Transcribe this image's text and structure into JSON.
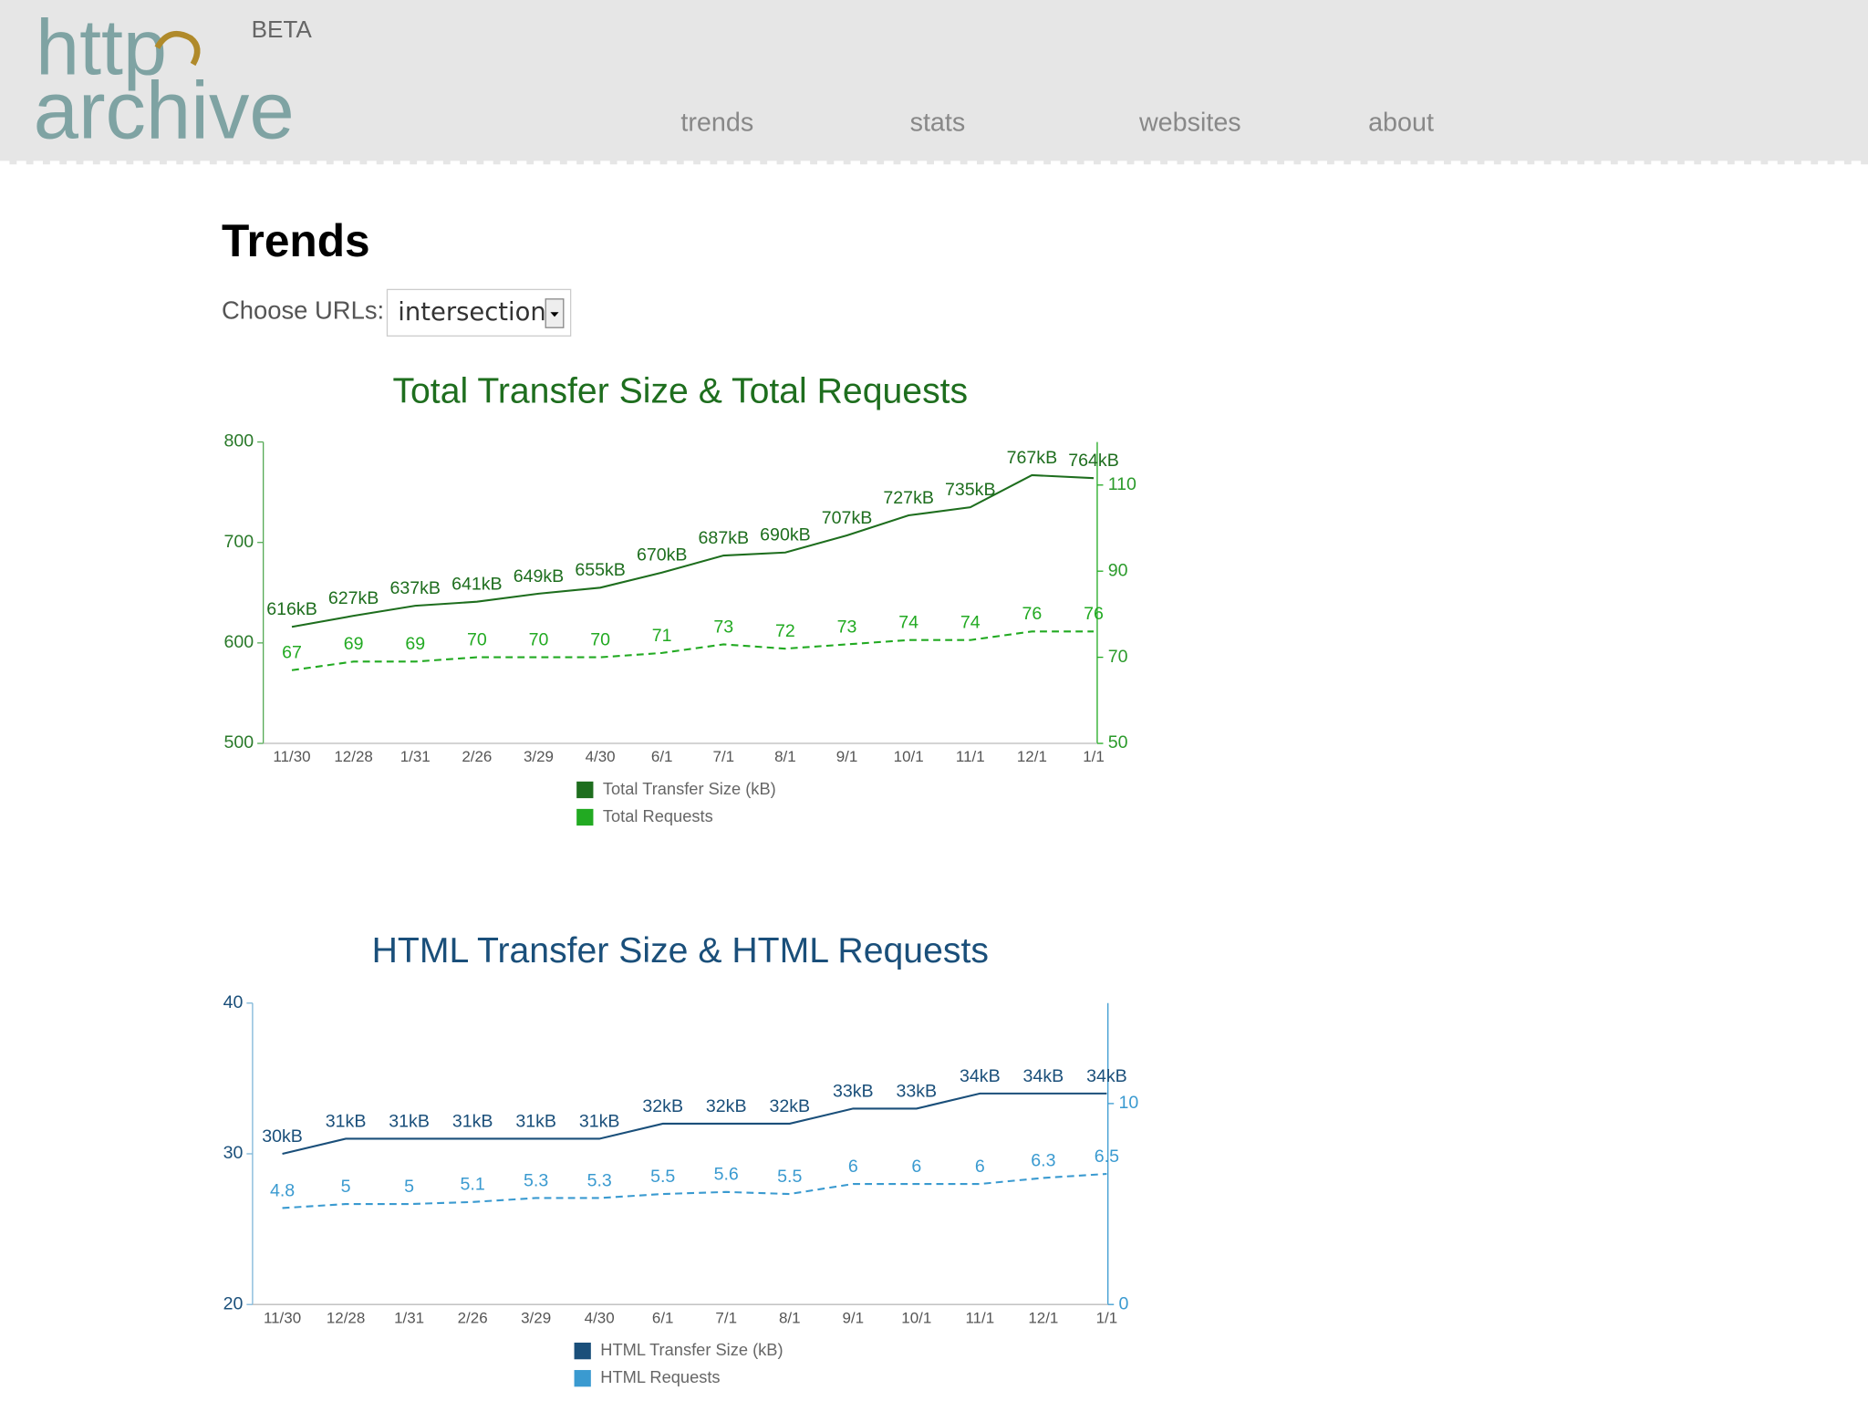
{
  "header": {
    "logo": [
      "http",
      "archive"
    ],
    "badge": "BETA",
    "nav": [
      "trends",
      "stats",
      "websites",
      "about"
    ]
  },
  "page": {
    "title": "Trends",
    "choose_label": "Choose URLs:",
    "select_value": "intersection"
  },
  "chart_data": [
    {
      "type": "line",
      "title": "Total Transfer Size & Total Requests",
      "categories": [
        "11/30",
        "12/28",
        "1/31",
        "2/26",
        "3/29",
        "4/30",
        "6/1",
        "7/1",
        "8/1",
        "9/1",
        "10/1",
        "11/1",
        "12/1",
        "1/1"
      ],
      "series": [
        {
          "name": "Total Transfer Size (kB)",
          "color": "#1e6e1e",
          "values": [
            616,
            627,
            637,
            641,
            649,
            655,
            670,
            687,
            690,
            707,
            727,
            735,
            767,
            764
          ],
          "value_labels": [
            "616kB",
            "627kB",
            "637kB",
            "641kB",
            "649kB",
            "655kB",
            "670kB",
            "687kB",
            "690kB",
            "707kB",
            "727kB",
            "735kB",
            "767kB",
            "764kB"
          ]
        },
        {
          "name": "Total Requests",
          "color": "#22aa22",
          "axis": "y2",
          "values": [
            67,
            69,
            69,
            70,
            70,
            70,
            71,
            73,
            72,
            73,
            74,
            74,
            76,
            76
          ]
        }
      ],
      "ylim": [
        500,
        800
      ],
      "yticks": [
        500,
        600,
        700,
        800
      ],
      "y2lim": [
        50,
        120
      ],
      "y2ticks": [
        50,
        70,
        90,
        110
      ]
    },
    {
      "type": "line",
      "title": "HTML Transfer Size & HTML Requests",
      "categories": [
        "11/30",
        "12/28",
        "1/31",
        "2/26",
        "3/29",
        "4/30",
        "6/1",
        "7/1",
        "8/1",
        "9/1",
        "10/1",
        "11/1",
        "12/1",
        "1/1"
      ],
      "series": [
        {
          "name": "HTML Transfer Size (kB)",
          "color": "#1a4f7a",
          "values": [
            30,
            31,
            31,
            31,
            31,
            31,
            32,
            32,
            32,
            33,
            33,
            34,
            34,
            34
          ],
          "value_labels": [
            "30kB",
            "31kB",
            "31kB",
            "31kB",
            "31kB",
            "31kB",
            "32kB",
            "32kB",
            "32kB",
            "33kB",
            "33kB",
            "34kB",
            "34kB",
            "34kB"
          ]
        },
        {
          "name": "HTML Requests",
          "color": "#3a9ad0",
          "axis": "y2",
          "values": [
            4.8,
            5,
            5,
            5.1,
            5.3,
            5.3,
            5.5,
            5.6,
            5.5,
            6,
            6,
            6,
            6.3,
            6.5
          ]
        }
      ],
      "ylim": [
        20,
        40
      ],
      "yticks": [
        20,
        30,
        40
      ],
      "y2lim": [
        0,
        15
      ],
      "y2ticks": [
        0,
        10
      ]
    }
  ]
}
